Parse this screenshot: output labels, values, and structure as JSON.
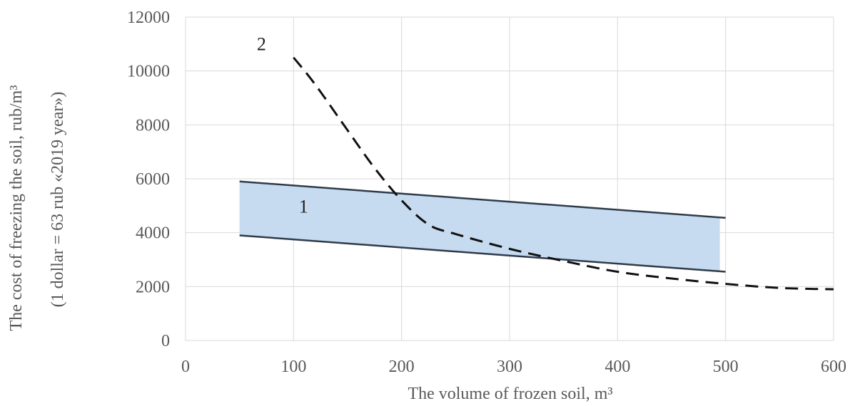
{
  "chart_data": {
    "type": "line",
    "xlabel": "The volume of frozen soil, m³",
    "ylabel_line1": "The cost of freezing the soil, rub/m³",
    "ylabel_line2": "(1 dollar = 63 rub «2019 year»)",
    "xlim": [
      0,
      600
    ],
    "ylim": [
      0,
      12000
    ],
    "x_ticks": [
      0,
      100,
      200,
      300,
      400,
      500,
      600
    ],
    "y_ticks": [
      0,
      2000,
      4000,
      6000,
      8000,
      10000,
      12000
    ],
    "grid": true,
    "colors": {
      "band_fill": "#c6dbf0",
      "band_line": "#2f3b4a",
      "dashed": "#111111",
      "grid": "#d9d9d9",
      "text": "#595959"
    },
    "series": [
      {
        "name": "1",
        "style": "band",
        "upper": {
          "x": [
            50,
            500
          ],
          "y": [
            5900,
            4550
          ]
        },
        "lower": {
          "x": [
            50,
            500
          ],
          "y": [
            3900,
            2550
          ]
        }
      },
      {
        "name": "2",
        "style": "dashed",
        "x": [
          100,
          120,
          150,
          175,
          200,
          225,
          250,
          300,
          350,
          400,
          450,
          500,
          550,
          600
        ],
        "y": [
          10500,
          9500,
          7800,
          6400,
          5200,
          4300,
          3950,
          3400,
          2950,
          2550,
          2300,
          2100,
          1950,
          1900
        ]
      }
    ]
  }
}
